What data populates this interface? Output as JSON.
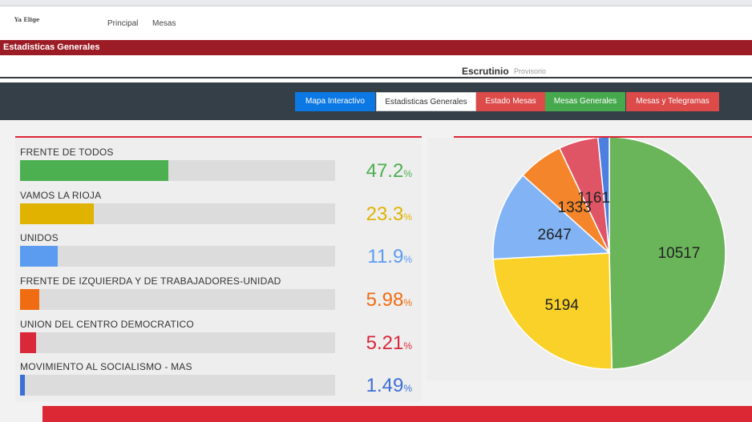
{
  "nav": {
    "logo_text": "Ya Elige",
    "links": [
      "Principal",
      "Mesas"
    ]
  },
  "section_title": "Estadisticas Generales",
  "subheader": {
    "title": "Escrutinio",
    "subtitle": "Provisorio"
  },
  "toolbar": {
    "buttons": [
      {
        "label": "Mapa Interactivo",
        "color": "#0b78e3"
      },
      {
        "label": "Estadisticas Generales",
        "color": "#ffffff"
      },
      {
        "label": "Estado Mesas",
        "color": "#dc4a4a"
      },
      {
        "label": "Mesas Generales",
        "color": "#46a94e"
      },
      {
        "label": "Mesas y Telegramas",
        "color": "#dc4a4a"
      }
    ]
  },
  "parties": [
    {
      "name": "FRENTE DE TODOS",
      "percent": "47.2",
      "value": 47.2,
      "color": "#4caf50"
    },
    {
      "name": "VAMOS LA RIOJA",
      "percent": "23.3",
      "value": 23.3,
      "color": "#e0b300"
    },
    {
      "name": "UNIDOS",
      "percent": "11.9",
      "value": 11.9,
      "color": "#5b9cf0"
    },
    {
      "name": "FRENTE DE IZQUIERDA Y DE TRABAJADORES-UNIDAD",
      "percent": "5.98",
      "value": 5.98,
      "color": "#f06c12"
    },
    {
      "name": "UNION DEL CENTRO DEMOCRATICO",
      "percent": "5.21",
      "value": 5.21,
      "color": "#d8283a"
    },
    {
      "name": "MOVIMIENTO AL SOCIALISMO - MAS",
      "percent": "1.49",
      "value": 1.49,
      "color": "#3b6fd6"
    }
  ],
  "pct_symbol": "%",
  "chart_data": {
    "type": "pie",
    "values": [
      10517,
      5194,
      2647,
      1333,
      1161,
      331
    ],
    "labels": [
      "10517",
      "5194",
      "2647",
      "1333",
      "1161",
      ""
    ],
    "colors": [
      "#6ab55a",
      "#f9d128",
      "#82b4f5",
      "#f5852a",
      "#e05566",
      "#4c7fe0"
    ],
    "start": "top",
    "direction": "clockwise"
  }
}
